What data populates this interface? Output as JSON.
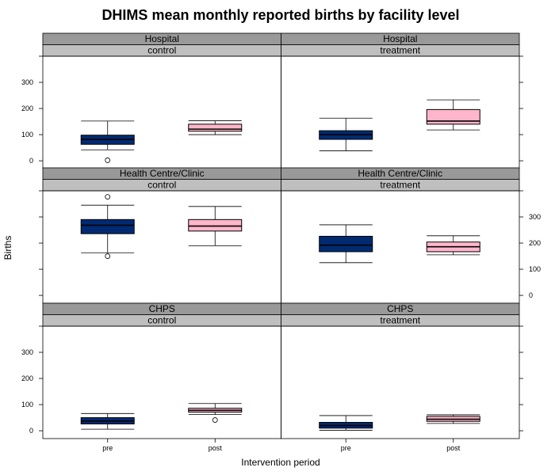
{
  "chart_data": {
    "type": "box",
    "title": "DHIMS mean monthly reported births by facility level",
    "xlabel": "Intervention period",
    "ylabel": "Births",
    "categories": [
      "pre",
      "post"
    ],
    "ylim": [
      -30,
      400
    ],
    "yticks": [
      0,
      100,
      200,
      300
    ],
    "grid": false,
    "legend": "none",
    "colors": {
      "pre": "#002b73",
      "post": "#ffb6cc",
      "strip_outer": "#999999",
      "strip_inner": "#bfbfbf"
    },
    "panels": [
      {
        "facility": "Hospital",
        "group": "control",
        "boxes": [
          {
            "category": "pre",
            "whisker_low": 42,
            "q1": 63,
            "median": 82,
            "q3": 98,
            "whisker_high": 152,
            "outliers": [
              2
            ]
          },
          {
            "category": "post",
            "whisker_low": 100,
            "q1": 113,
            "median": 121,
            "q3": 140,
            "whisker_high": 153,
            "outliers": []
          }
        ]
      },
      {
        "facility": "Hospital",
        "group": "treatment",
        "boxes": [
          {
            "category": "pre",
            "whisker_low": 38,
            "q1": 82,
            "median": 100,
            "q3": 115,
            "whisker_high": 163,
            "outliers": []
          },
          {
            "category": "post",
            "whisker_low": 118,
            "q1": 140,
            "median": 152,
            "q3": 196,
            "whisker_high": 233,
            "outliers": []
          }
        ]
      },
      {
        "facility": "Health Centre/Clinic",
        "group": "control",
        "boxes": [
          {
            "category": "pre",
            "whisker_low": 163,
            "q1": 236,
            "median": 268,
            "q3": 290,
            "whisker_high": 345,
            "outliers": [
              377,
              150
            ]
          },
          {
            "category": "post",
            "whisker_low": 190,
            "q1": 246,
            "median": 265,
            "q3": 290,
            "whisker_high": 340,
            "outliers": []
          }
        ]
      },
      {
        "facility": "Health Centre/Clinic",
        "group": "treatment",
        "boxes": [
          {
            "category": "pre",
            "whisker_low": 125,
            "q1": 167,
            "median": 192,
            "q3": 226,
            "whisker_high": 270,
            "outliers": []
          },
          {
            "category": "post",
            "whisker_low": 155,
            "q1": 167,
            "median": 186,
            "q3": 204,
            "whisker_high": 228,
            "outliers": []
          }
        ]
      },
      {
        "facility": "CHPS",
        "group": "control",
        "boxes": [
          {
            "category": "pre",
            "whisker_low": 6,
            "q1": 26,
            "median": 37,
            "q3": 50,
            "whisker_high": 66,
            "outliers": []
          },
          {
            "category": "post",
            "whisker_low": 62,
            "q1": 71,
            "median": 78,
            "q3": 86,
            "whisker_high": 104,
            "outliers": [
              41
            ]
          }
        ]
      },
      {
        "facility": "CHPS",
        "group": "treatment",
        "boxes": [
          {
            "category": "pre",
            "whisker_low": 2,
            "q1": 10,
            "median": 20,
            "q3": 32,
            "whisker_high": 58,
            "outliers": []
          },
          {
            "category": "post",
            "whisker_low": 28,
            "q1": 36,
            "median": 44,
            "q3": 55,
            "whisker_high": 61,
            "outliers": []
          }
        ]
      }
    ]
  }
}
